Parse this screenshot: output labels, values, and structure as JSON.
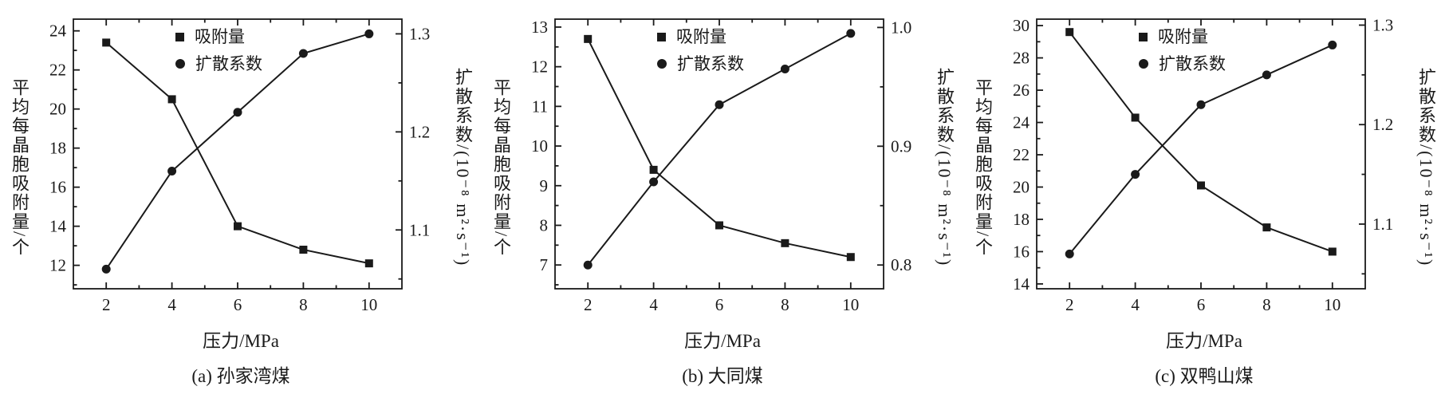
{
  "figure": {
    "background": "#ffffff",
    "line_color": "#1a1a1a"
  },
  "chart_data": [
    {
      "type": "line",
      "panel": "a",
      "caption": "(a) 孙家湾煤",
      "xlabel": "压力/MPa",
      "ylabel_left": "平均每晶胞吸附量/个",
      "ylabel_right": "扩散系数/(10⁻⁸ m²·s⁻¹)",
      "legend": [
        "吸附量",
        "扩散系数"
      ],
      "x_ticks": [
        2,
        4,
        6,
        8,
        10
      ],
      "xlim": [
        1,
        11
      ],
      "left_ticks": [
        12,
        14,
        16,
        18,
        20,
        22,
        24
      ],
      "ylim_left": [
        10.8,
        24.6
      ],
      "right_ticks": [
        1.1,
        1.2,
        1.3
      ],
      "right_decimals": 1,
      "ylim_right": [
        1.04,
        1.315
      ],
      "grid": false,
      "series": [
        {
          "name": "吸附量",
          "axis": "left",
          "marker": "square",
          "x": [
            2,
            4,
            6,
            8,
            10
          ],
          "y": [
            23.4,
            20.5,
            14.0,
            12.8,
            12.1
          ]
        },
        {
          "name": "扩散系数",
          "axis": "right",
          "marker": "circle",
          "x": [
            2,
            4,
            6,
            8,
            10
          ],
          "y": [
            1.06,
            1.16,
            1.22,
            1.28,
            1.3
          ]
        }
      ]
    },
    {
      "type": "line",
      "panel": "b",
      "caption": "(b) 大同煤",
      "xlabel": "压力/MPa",
      "ylabel_left": "平均每晶胞吸附量/个",
      "ylabel_right": "扩散系数/(10⁻⁸ m²·s⁻¹)",
      "legend": [
        "吸附量",
        "扩散系数"
      ],
      "x_ticks": [
        2,
        4,
        6,
        8,
        10
      ],
      "xlim": [
        1,
        11
      ],
      "left_ticks": [
        7,
        8,
        9,
        10,
        11,
        12,
        13
      ],
      "ylim_left": [
        6.4,
        13.2
      ],
      "right_ticks": [
        0.8,
        0.9,
        1.0
      ],
      "right_decimals": 1,
      "ylim_right": [
        0.78,
        1.007
      ],
      "grid": false,
      "series": [
        {
          "name": "吸附量",
          "axis": "left",
          "marker": "square",
          "x": [
            2,
            4,
            6,
            8,
            10
          ],
          "y": [
            12.7,
            9.4,
            8.0,
            7.55,
            7.2
          ]
        },
        {
          "name": "扩散系数",
          "axis": "right",
          "marker": "circle",
          "x": [
            2,
            4,
            6,
            8,
            10
          ],
          "y": [
            0.8,
            0.87,
            0.935,
            0.965,
            0.995
          ]
        }
      ]
    },
    {
      "type": "line",
      "panel": "c",
      "caption": "(c) 双鸭山煤",
      "xlabel": "压力/MPa",
      "ylabel_left": "平均每晶胞吸附量/个",
      "ylabel_right": "扩散系数/(10⁻⁸ m²·s⁻¹)",
      "legend": [
        "吸附量",
        "扩散系数"
      ],
      "x_ticks": [
        2,
        4,
        6,
        8,
        10
      ],
      "xlim": [
        1,
        11
      ],
      "left_ticks": [
        14,
        16,
        18,
        20,
        22,
        24,
        26,
        28,
        30
      ],
      "ylim_left": [
        13.7,
        30.4
      ],
      "right_ticks": [
        1.1,
        1.2,
        1.3
      ],
      "right_decimals": 1,
      "ylim_right": [
        1.035,
        1.306
      ],
      "grid": false,
      "series": [
        {
          "name": "吸附量",
          "axis": "left",
          "marker": "square",
          "x": [
            2,
            4,
            6,
            8,
            10
          ],
          "y": [
            29.6,
            24.3,
            20.1,
            17.5,
            16.0
          ]
        },
        {
          "name": "扩散系数",
          "axis": "right",
          "marker": "circle",
          "x": [
            2,
            4,
            6,
            8,
            10
          ],
          "y": [
            1.07,
            1.15,
            1.22,
            1.25,
            1.28
          ]
        }
      ]
    }
  ]
}
